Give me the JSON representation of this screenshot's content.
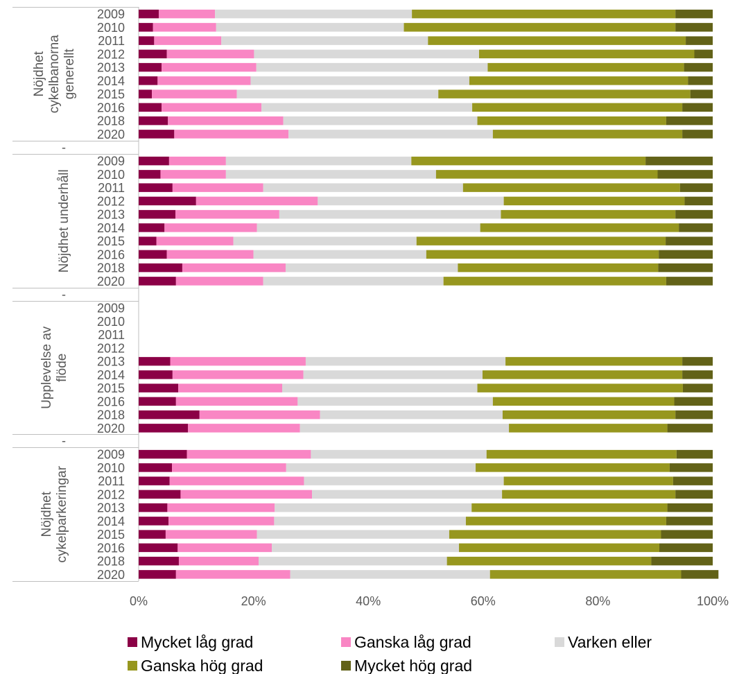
{
  "chart_data": {
    "type": "bar",
    "orientation": "horizontal",
    "stacked": "percent",
    "xlim": [
      0,
      100
    ],
    "x_ticks": [
      "0%",
      "20%",
      "40%",
      "60%",
      "80%",
      "100%"
    ],
    "grid": false,
    "legend_position": "bottom",
    "groups": [
      {
        "label": "Nöjdhet cykelbanorna generellt",
        "label_lines": [
          "Nöjdhet",
          "cykelbanorna",
          "generellt"
        ],
        "years": [
          "2009",
          "2010",
          "2011",
          "2012",
          "2013",
          "2014",
          "2015",
          "2016",
          "2018",
          "2020"
        ],
        "values": [
          [
            3.5,
            9.8,
            34.3,
            45.9,
            6.5
          ],
          [
            2.5,
            11.0,
            32.7,
            47.3,
            6.5
          ],
          [
            2.7,
            11.7,
            36.0,
            44.9,
            4.7
          ],
          [
            4.9,
            15.2,
            39.2,
            37.5,
            3.2
          ],
          [
            4.0,
            16.5,
            40.3,
            34.2,
            5.0
          ],
          [
            3.3,
            16.2,
            38.1,
            38.1,
            4.3
          ],
          [
            2.3,
            14.8,
            35.1,
            43.9,
            3.9
          ],
          [
            4.0,
            17.4,
            36.7,
            36.6,
            5.3
          ],
          [
            5.1,
            20.1,
            33.8,
            32.9,
            8.1
          ],
          [
            6.2,
            19.9,
            35.6,
            33.0,
            5.3
          ]
        ]
      },
      {
        "label": "Nöjdhet underhåll",
        "label_lines": [
          "Nöjdhet underhåll"
        ],
        "years": [
          "2009",
          "2010",
          "2011",
          "2012",
          "2013",
          "2014",
          "2015",
          "2016",
          "2018",
          "2020"
        ],
        "values": [
          [
            5.3,
            9.9,
            32.3,
            40.8,
            11.7
          ],
          [
            3.8,
            11.4,
            36.6,
            38.6,
            9.6
          ],
          [
            5.9,
            15.8,
            34.8,
            37.8,
            5.7
          ],
          [
            10.0,
            21.2,
            32.4,
            31.5,
            4.9
          ],
          [
            6.4,
            18.1,
            38.6,
            30.4,
            6.5
          ],
          [
            4.5,
            16.1,
            38.9,
            34.6,
            5.9
          ],
          [
            3.1,
            13.4,
            31.9,
            43.4,
            8.2
          ],
          [
            4.9,
            15.1,
            30.1,
            40.5,
            9.4
          ],
          [
            7.6,
            18.0,
            30.0,
            34.9,
            9.5
          ],
          [
            6.5,
            15.2,
            31.4,
            38.8,
            8.1
          ]
        ]
      },
      {
        "label": "Upplevelse av flöde",
        "label_lines": [
          "Upplevelse av",
          "flöde"
        ],
        "years": [
          "2009",
          "2010",
          "2011",
          "2012",
          "2013",
          "2014",
          "2015",
          "2016",
          "2018",
          "2020"
        ],
        "values": [
          null,
          null,
          null,
          null,
          [
            5.5,
            23.6,
            34.8,
            30.8,
            5.3
          ],
          [
            5.9,
            22.8,
            31.2,
            34.8,
            5.3
          ],
          [
            6.9,
            18.1,
            34.0,
            35.8,
            5.2
          ],
          [
            6.5,
            21.2,
            34.0,
            31.6,
            6.7
          ],
          [
            10.6,
            21.0,
            31.8,
            30.1,
            6.5
          ],
          [
            8.6,
            19.5,
            36.4,
            27.6,
            7.9
          ]
        ]
      },
      {
        "label": "Nöjdhet cykelparkeringar",
        "label_lines": [
          "Nöjdhet",
          "cykelparkeringar"
        ],
        "years": [
          "2009",
          "2010",
          "2011",
          "2012",
          "2013",
          "2014",
          "2015",
          "2016",
          "2018",
          "2020"
        ],
        "values": [
          [
            8.4,
            21.6,
            30.6,
            33.1,
            6.3
          ],
          [
            5.8,
            19.9,
            33.0,
            33.8,
            7.5
          ],
          [
            5.4,
            23.4,
            34.8,
            29.5,
            6.9
          ],
          [
            7.3,
            22.9,
            33.1,
            30.2,
            6.5
          ],
          [
            5.0,
            18.7,
            34.3,
            34.1,
            7.9
          ],
          [
            5.2,
            18.4,
            33.4,
            34.9,
            8.1
          ],
          [
            4.7,
            15.9,
            33.5,
            36.9,
            9.0
          ],
          [
            6.8,
            16.4,
            32.6,
            34.9,
            9.3
          ],
          [
            7.0,
            13.9,
            32.8,
            35.6,
            10.7
          ],
          [
            6.5,
            19.9,
            34.8,
            33.3,
            6.5
          ]
        ]
      }
    ],
    "separator_label": "-",
    "series": [
      {
        "name": "Mycket låg grad",
        "color": "#8B0046"
      },
      {
        "name": "Ganska låg grad",
        "color": "#F986C4"
      },
      {
        "name": "Varken eller",
        "color": "#D9D9D9"
      },
      {
        "name": "Ganska hög grad",
        "color": "#97971F"
      },
      {
        "name": "Mycket hög grad",
        "color": "#626218"
      }
    ]
  }
}
